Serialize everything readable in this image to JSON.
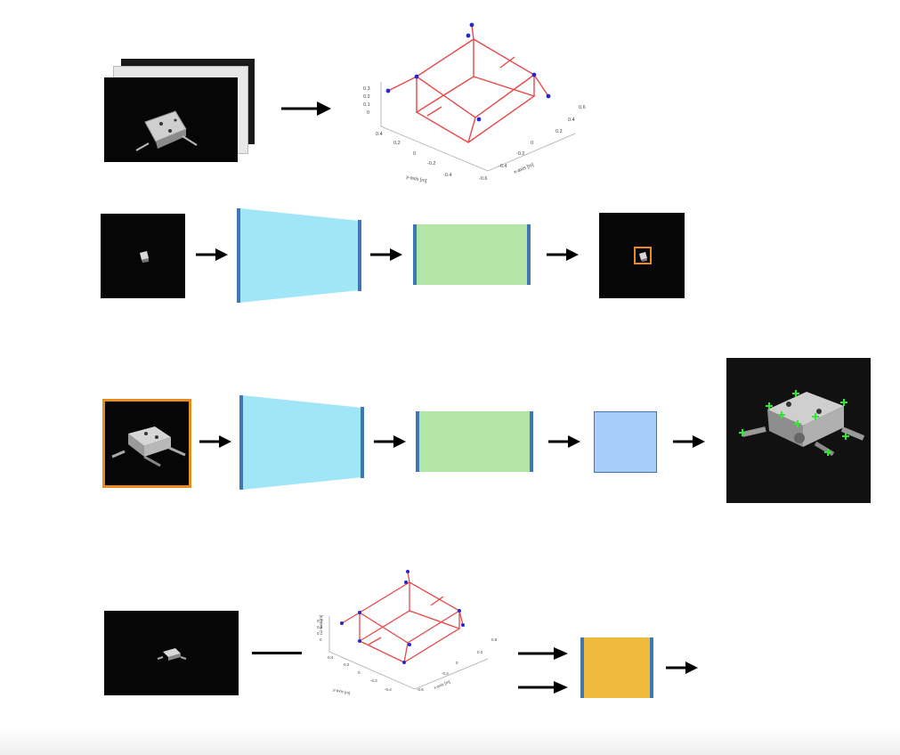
{
  "colors": {
    "encoder_block": "#a0e6f6",
    "decoder_block": "#b2e5a6",
    "head_block": "#a8cdfc",
    "output_block": "#f0ba3c",
    "block_edge": "#3c78b4",
    "crop_box": "#e88c1e",
    "wireframe": "#e84848",
    "vertex": "#2828c8",
    "keypoint": "#32e632"
  },
  "icons": {
    "arrow": "right-arrow-icon",
    "wireframe": "3d-wireframe-icon",
    "satellite": "satellite-icon"
  },
  "wireframe_plot": {
    "z_axis_label": "z-axis [m]",
    "y_axis_label": "y-axis [m]",
    "x_axis_label": "x-axis [m]",
    "z_ticks": [
      "0.3",
      "0.2",
      "0.1",
      "0"
    ],
    "y_ticks": [
      "0.4",
      "0.2",
      "0",
      "-0.2",
      "-0.4"
    ],
    "x_ticks": [
      "0.6",
      "0.4",
      "0.2",
      "0",
      "-0.2",
      "-0.4",
      "-0.6"
    ]
  }
}
